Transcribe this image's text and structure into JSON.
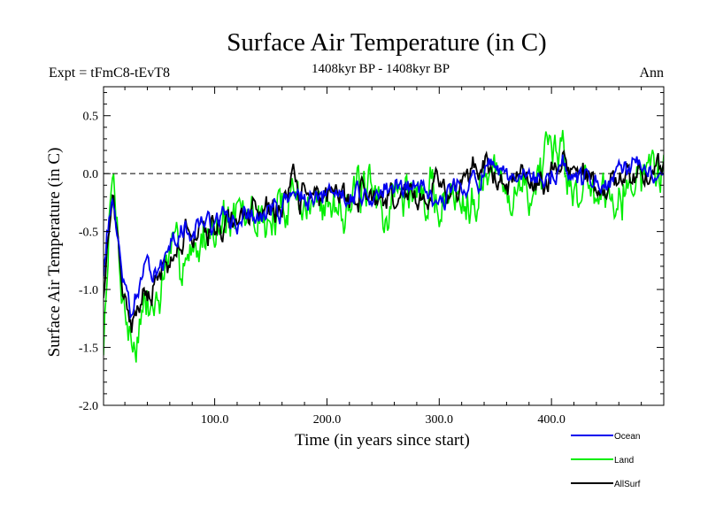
{
  "chart_data": {
    "type": "line",
    "title": "Surface Air Temperature (in C)",
    "subtitle_left": "Expt = tFmC8-tEvT8",
    "subtitle_center": "1408kyr BP - 1408kyr BP",
    "subtitle_right": "Ann",
    "xlabel": "Time (in years since start)",
    "ylabel": "Surface Air Temperature (in C)",
    "xlim": [
      1,
      500
    ],
    "ylim": [
      -2.0,
      0.75
    ],
    "x_ticks": [
      100,
      200,
      300,
      400
    ],
    "x_tick_labels": [
      "100.0",
      "200.0",
      "300.0",
      "400.0"
    ],
    "y_ticks": [
      -2.0,
      -1.5,
      -1.0,
      -0.5,
      0.0,
      0.5
    ],
    "y_tick_labels": [
      "-2.0",
      "-1.5",
      "-1.0",
      "-0.5",
      "0.0",
      "0.5"
    ],
    "reference_line": 0.0,
    "series": [
      {
        "name": "Land",
        "color": "#00ee00",
        "amp": 0.32,
        "seed": 7,
        "anchors": [
          [
            1,
            -1.55
          ],
          [
            4,
            -0.9
          ],
          [
            7,
            -0.35
          ],
          [
            10,
            -0.2
          ],
          [
            13,
            -0.5
          ],
          [
            17,
            -1.0
          ],
          [
            22,
            -1.3
          ],
          [
            27,
            -1.55
          ],
          [
            32,
            -1.35
          ],
          [
            38,
            -1.25
          ],
          [
            44,
            -1.2
          ],
          [
            50,
            -1.05
          ],
          [
            56,
            -0.85
          ],
          [
            62,
            -0.8
          ],
          [
            70,
            -0.7
          ],
          [
            80,
            -0.6
          ],
          [
            90,
            -0.5
          ],
          [
            100,
            -0.45
          ],
          [
            115,
            -0.45
          ],
          [
            130,
            -0.4
          ],
          [
            145,
            -0.38
          ],
          [
            160,
            -0.3
          ],
          [
            170,
            -0.1
          ],
          [
            185,
            -0.3
          ],
          [
            200,
            -0.2
          ],
          [
            215,
            -0.15
          ],
          [
            230,
            -0.2
          ],
          [
            250,
            -0.25
          ],
          [
            270,
            -0.15
          ],
          [
            290,
            -0.2
          ],
          [
            310,
            -0.2
          ],
          [
            330,
            -0.05
          ],
          [
            345,
            0.0
          ],
          [
            360,
            -0.1
          ],
          [
            380,
            -0.1
          ],
          [
            400,
            -0.05
          ],
          [
            410,
            0.15
          ],
          [
            420,
            -0.05
          ],
          [
            440,
            -0.15
          ],
          [
            460,
            -0.05
          ],
          [
            480,
            0.0
          ],
          [
            500,
            0.05
          ]
        ]
      },
      {
        "name": "Ocean",
        "color": "#0000ee",
        "amp": 0.14,
        "seed": 13,
        "anchors": [
          [
            1,
            -0.85
          ],
          [
            4,
            -0.5
          ],
          [
            7,
            -0.3
          ],
          [
            10,
            -0.25
          ],
          [
            13,
            -0.45
          ],
          [
            17,
            -0.85
          ],
          [
            22,
            -1.05
          ],
          [
            27,
            -1.15
          ],
          [
            32,
            -1.0
          ],
          [
            38,
            -0.9
          ],
          [
            44,
            -0.85
          ],
          [
            50,
            -0.8
          ],
          [
            56,
            -0.7
          ],
          [
            62,
            -0.6
          ],
          [
            70,
            -0.5
          ],
          [
            80,
            -0.45
          ],
          [
            90,
            -0.45
          ],
          [
            100,
            -0.42
          ],
          [
            115,
            -0.4
          ],
          [
            130,
            -0.35
          ],
          [
            145,
            -0.32
          ],
          [
            160,
            -0.28
          ],
          [
            170,
            -0.15
          ],
          [
            185,
            -0.25
          ],
          [
            200,
            -0.15
          ],
          [
            215,
            -0.12
          ],
          [
            230,
            -0.15
          ],
          [
            250,
            -0.18
          ],
          [
            270,
            -0.12
          ],
          [
            290,
            -0.15
          ],
          [
            310,
            -0.15
          ],
          [
            330,
            -0.05
          ],
          [
            345,
            0.0
          ],
          [
            360,
            -0.08
          ],
          [
            380,
            -0.08
          ],
          [
            400,
            -0.03
          ],
          [
            410,
            0.1
          ],
          [
            420,
            -0.02
          ],
          [
            440,
            -0.1
          ],
          [
            460,
            -0.03
          ],
          [
            480,
            0.0
          ],
          [
            500,
            0.03
          ]
        ]
      },
      {
        "name": "AllSurf",
        "color": "#000000",
        "amp": 0.18,
        "seed": 21,
        "anchors": [
          [
            1,
            -1.0
          ],
          [
            4,
            -0.6
          ],
          [
            7,
            -0.32
          ],
          [
            10,
            -0.25
          ],
          [
            13,
            -0.47
          ],
          [
            17,
            -0.9
          ],
          [
            22,
            -1.15
          ],
          [
            27,
            -1.3
          ],
          [
            32,
            -1.1
          ],
          [
            38,
            -1.0
          ],
          [
            44,
            -0.95
          ],
          [
            50,
            -0.9
          ],
          [
            56,
            -0.75
          ],
          [
            62,
            -0.65
          ],
          [
            70,
            -0.55
          ],
          [
            80,
            -0.5
          ],
          [
            90,
            -0.46
          ],
          [
            100,
            -0.43
          ],
          [
            115,
            -0.41
          ],
          [
            130,
            -0.36
          ],
          [
            145,
            -0.33
          ],
          [
            160,
            -0.28
          ],
          [
            170,
            -0.14
          ],
          [
            185,
            -0.26
          ],
          [
            200,
            -0.16
          ],
          [
            215,
            -0.13
          ],
          [
            230,
            -0.16
          ],
          [
            250,
            -0.2
          ],
          [
            270,
            -0.13
          ],
          [
            290,
            -0.16
          ],
          [
            310,
            -0.16
          ],
          [
            330,
            -0.05
          ],
          [
            345,
            0.0
          ],
          [
            360,
            -0.09
          ],
          [
            380,
            -0.09
          ],
          [
            400,
            -0.04
          ],
          [
            410,
            0.12
          ],
          [
            420,
            -0.03
          ],
          [
            440,
            -0.12
          ],
          [
            460,
            -0.04
          ],
          [
            480,
            0.0
          ],
          [
            500,
            0.04
          ]
        ]
      }
    ],
    "legend_order": [
      "Ocean",
      "Land",
      "AllSurf"
    ],
    "legend_position": "bottom-right"
  }
}
